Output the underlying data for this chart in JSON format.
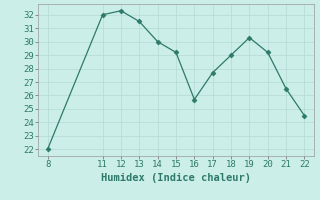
{
  "x": [
    8,
    11,
    12,
    13,
    14,
    15,
    16,
    17,
    18,
    19,
    20,
    21,
    22
  ],
  "y": [
    22.0,
    32.0,
    32.3,
    31.5,
    30.0,
    29.2,
    25.7,
    27.7,
    29.0,
    30.3,
    29.2,
    26.5,
    24.5
  ],
  "xlim": [
    7.5,
    22.5
  ],
  "ylim": [
    21.5,
    32.8
  ],
  "xticks": [
    8,
    11,
    12,
    13,
    14,
    15,
    16,
    17,
    18,
    19,
    20,
    21,
    22
  ],
  "yticks": [
    22,
    23,
    24,
    25,
    26,
    27,
    28,
    29,
    30,
    31,
    32
  ],
  "xlabel": "Humidex (Indice chaleur)",
  "line_color": "#2d7a6a",
  "marker": "D",
  "marker_size": 2.5,
  "bg_color": "#cceee8",
  "grid_color": "#b8ddd8",
  "xlabel_fontsize": 7.5,
  "tick_fontsize": 6.5
}
